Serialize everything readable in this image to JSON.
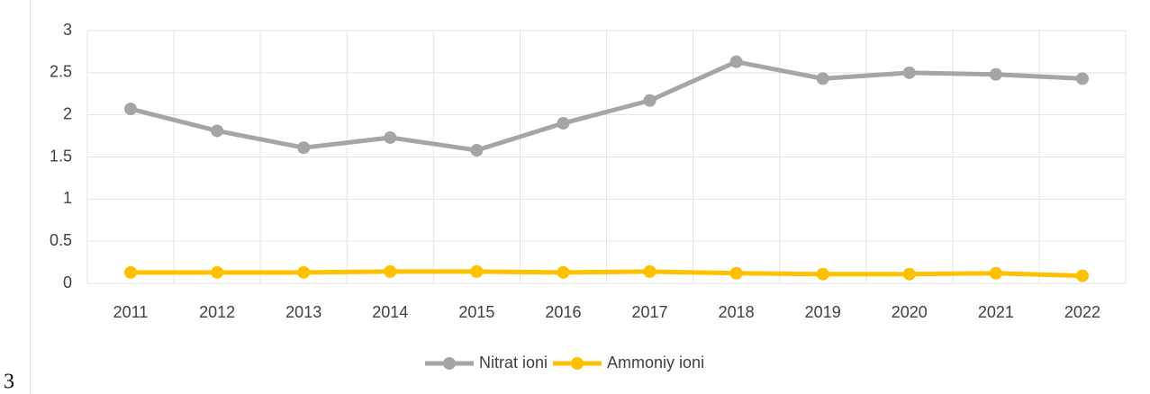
{
  "chart_data": {
    "type": "line",
    "categories": [
      "2011",
      "2012",
      "2013",
      "2014",
      "2015",
      "2016",
      "2017",
      "2018",
      "2019",
      "2020",
      "2021",
      "2022"
    ],
    "series": [
      {
        "name": "Nitrat ioni",
        "color": "#a5a5a5",
        "values": [
          2.07,
          1.81,
          1.61,
          1.73,
          1.58,
          1.9,
          2.17,
          2.63,
          2.43,
          2.5,
          2.48,
          2.43
        ]
      },
      {
        "name": "Ammoniy ioni",
        "color": "#ffc000",
        "values": [
          0.13,
          0.13,
          0.13,
          0.14,
          0.14,
          0.13,
          0.14,
          0.12,
          0.11,
          0.11,
          0.12,
          0.09
        ]
      }
    ],
    "ylim": [
      0,
      3
    ],
    "yticks": [
      0,
      0.5,
      1,
      1.5,
      2,
      2.5,
      3
    ],
    "grid": true,
    "legend": "bottom"
  },
  "page_mark": "3"
}
